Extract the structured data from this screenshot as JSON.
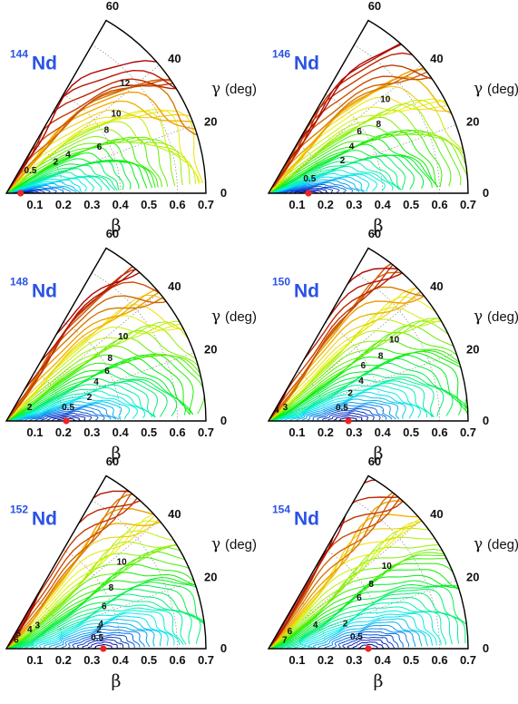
{
  "chart_data": [
    {
      "type": "contour",
      "nucleus": {
        "mass": "144",
        "symbol": "Nd"
      },
      "xlabel": "β",
      "ylabel": "γ",
      "ylabel_unit": "(deg)",
      "beta_ticks": [
        "0.1",
        "0.2",
        "0.3",
        "0.4",
        "0.5",
        "0.6",
        "0.7"
      ],
      "gamma_ticks": [
        "0",
        "20",
        "40",
        "60"
      ],
      "beta_range": [
        0,
        0.7
      ],
      "gamma_range": [
        0,
        60
      ],
      "minimum": {
        "beta": 0.05,
        "gamma": 0
      },
      "contour_labels": [
        {
          "text": "0.5",
          "beta": 0.11,
          "gamma": 40
        },
        {
          "text": "2",
          "beta": 0.2,
          "gamma": 30
        },
        {
          "text": "4",
          "beta": 0.25,
          "gamma": 30
        },
        {
          "text": "6",
          "beta": 0.36,
          "gamma": 25
        },
        {
          "text": "8",
          "beta": 0.41,
          "gamma": 31
        },
        {
          "text": "10",
          "beta": 0.47,
          "gamma": 35
        },
        {
          "text": "12",
          "beta": 0.56,
          "gamma": 42
        }
      ]
    },
    {
      "type": "contour",
      "nucleus": {
        "mass": "146",
        "symbol": "Nd"
      },
      "xlabel": "β",
      "ylabel": "γ",
      "ylabel_unit": "(deg)",
      "beta_ticks": [
        "0.1",
        "0.2",
        "0.3",
        "0.4",
        "0.5",
        "0.6",
        "0.7"
      ],
      "gamma_ticks": [
        "0",
        "20",
        "40",
        "60"
      ],
      "beta_range": [
        0,
        0.7
      ],
      "gamma_range": [
        0,
        60
      ],
      "minimum": {
        "beta": 0.14,
        "gamma": 0
      },
      "contour_labels": [
        {
          "text": "0.5",
          "beta": 0.15,
          "gamma": 16
        },
        {
          "text": "2",
          "beta": 0.28,
          "gamma": 22
        },
        {
          "text": "4",
          "beta": 0.33,
          "gamma": 28
        },
        {
          "text": "6",
          "beta": 0.38,
          "gamma": 33
        },
        {
          "text": "8",
          "beta": 0.45,
          "gamma": 31
        },
        {
          "text": "10",
          "beta": 0.52,
          "gamma": 38
        }
      ]
    },
    {
      "type": "contour",
      "nucleus": {
        "mass": "148",
        "symbol": "Nd"
      },
      "xlabel": "β",
      "ylabel": "γ",
      "ylabel_unit": "(deg)",
      "beta_ticks": [
        "0.1",
        "0.2",
        "0.3",
        "0.4",
        "0.5",
        "0.6",
        "0.7"
      ],
      "gamma_ticks": [
        "0",
        "20",
        "40",
        "60"
      ],
      "beta_range": [
        0,
        0.7
      ],
      "gamma_range": [
        0,
        60
      ],
      "minimum": {
        "beta": 0.21,
        "gamma": 0
      },
      "contour_labels": [
        {
          "text": "2",
          "beta": 0.09,
          "gamma": 25
        },
        {
          "text": "0.5",
          "beta": 0.22,
          "gamma": 10
        },
        {
          "text": "2",
          "beta": 0.3,
          "gamma": 14
        },
        {
          "text": "4",
          "beta": 0.34,
          "gamma": 22
        },
        {
          "text": "6",
          "beta": 0.39,
          "gamma": 25
        },
        {
          "text": "8",
          "beta": 0.42,
          "gamma": 30
        },
        {
          "text": "10",
          "beta": 0.5,
          "gamma": 35
        }
      ]
    },
    {
      "type": "contour",
      "nucleus": {
        "mass": "150",
        "symbol": "Nd"
      },
      "xlabel": "β",
      "ylabel": "γ",
      "ylabel_unit": "(deg)",
      "beta_ticks": [
        "0.1",
        "0.2",
        "0.3",
        "0.4",
        "0.5",
        "0.6",
        "0.7"
      ],
      "gamma_ticks": [
        "0",
        "20",
        "40",
        "60"
      ],
      "beta_range": [
        0,
        0.7
      ],
      "gamma_range": [
        0,
        60
      ],
      "minimum": {
        "beta": 0.28,
        "gamma": 0
      },
      "contour_labels": [
        {
          "text": "4",
          "beta": 0.04,
          "gamma": 45
        },
        {
          "text": "3",
          "beta": 0.07,
          "gamma": 33
        },
        {
          "text": "0.5",
          "beta": 0.26,
          "gamma": 8
        },
        {
          "text": "2",
          "beta": 0.3,
          "gamma": 17
        },
        {
          "text": "4",
          "beta": 0.35,
          "gamma": 22
        },
        {
          "text": "6",
          "beta": 0.38,
          "gamma": 29
        },
        {
          "text": "8",
          "beta": 0.45,
          "gamma": 29
        },
        {
          "text": "10",
          "beta": 0.52,
          "gamma": 32
        }
      ]
    },
    {
      "type": "contour",
      "nucleus": {
        "mass": "152",
        "symbol": "Nd"
      },
      "xlabel": "β",
      "ylabel": "γ",
      "ylabel_unit": "(deg)",
      "beta_ticks": [
        "0.1",
        "0.2",
        "0.3",
        "0.4",
        "0.5",
        "0.6",
        "0.7"
      ],
      "gamma_ticks": [
        "0",
        "20",
        "40",
        "60"
      ],
      "beta_range": [
        0,
        0.7
      ],
      "gamma_range": [
        0,
        60
      ],
      "minimum": {
        "beta": 0.34,
        "gamma": 0
      },
      "contour_labels": [
        {
          "text": "6",
          "beta": 0.04,
          "gamma": 30
        },
        {
          "text": "5",
          "beta": 0.06,
          "gamma": 45
        },
        {
          "text": "4",
          "beta": 0.1,
          "gamma": 35
        },
        {
          "text": "3",
          "beta": 0.13,
          "gamma": 33
        },
        {
          "text": "0.5",
          "beta": 0.32,
          "gamma": 5
        },
        {
          "text": "2",
          "beta": 0.33,
          "gamma": 10
        },
        {
          "text": "4",
          "beta": 0.34,
          "gamma": 13
        },
        {
          "text": "6",
          "beta": 0.37,
          "gamma": 22
        },
        {
          "text": "8",
          "beta": 0.42,
          "gamma": 29
        },
        {
          "text": "10",
          "beta": 0.5,
          "gamma": 36
        }
      ]
    },
    {
      "type": "contour",
      "nucleus": {
        "mass": "154",
        "symbol": "Nd"
      },
      "xlabel": "β",
      "ylabel": "γ",
      "ylabel_unit": "(deg)",
      "beta_ticks": [
        "0.1",
        "0.2",
        "0.3",
        "0.4",
        "0.5",
        "0.6",
        "0.7"
      ],
      "gamma_ticks": [
        "0",
        "20",
        "40",
        "60"
      ],
      "beta_range": [
        0,
        0.7
      ],
      "gamma_range": [
        0,
        60
      ],
      "minimum": {
        "beta": 0.35,
        "gamma": 0
      },
      "contour_labels": [
        {
          "text": "7",
          "beta": 0.06,
          "gamma": 20
        },
        {
          "text": "6",
          "beta": 0.09,
          "gamma": 34
        },
        {
          "text": "4",
          "beta": 0.18,
          "gamma": 24
        },
        {
          "text": "2",
          "beta": 0.28,
          "gamma": 16
        },
        {
          "text": "0.5",
          "beta": 0.31,
          "gamma": 6
        },
        {
          "text": "6",
          "beta": 0.36,
          "gamma": 28
        },
        {
          "text": "8",
          "beta": 0.42,
          "gamma": 31
        },
        {
          "text": "10",
          "beta": 0.5,
          "gamma": 34
        }
      ]
    }
  ]
}
